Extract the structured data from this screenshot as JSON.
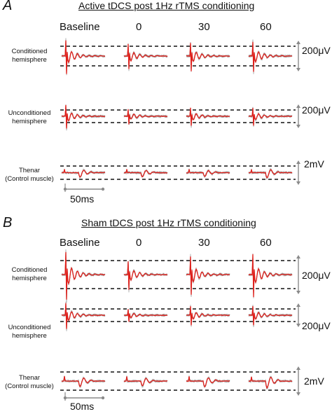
{
  "panels": [
    {
      "letter": "A",
      "title": "Active tDCS post 1Hz rTMS conditioning",
      "columns": [
        "Baseline",
        "0",
        "30",
        "60"
      ],
      "rows": [
        {
          "label_line1": "Conditioned",
          "label_line2": "hemisphere",
          "scale": "200μV"
        },
        {
          "label_line1": "Unconditioned",
          "label_line2": "hemisphere",
          "scale": "200μV"
        },
        {
          "label_line1": "Thenar",
          "label_line2": "(Control muscle)",
          "scale": "2mV"
        }
      ],
      "time_scale": "50ms"
    },
    {
      "letter": "B",
      "title": "Sham tDCS post 1Hz rTMS conditioning",
      "columns": [
        "Baseline",
        "0",
        "30",
        "60"
      ],
      "rows": [
        {
          "label_line1": "Conditioned",
          "label_line2": "hemisphere",
          "scale": "200μV"
        },
        {
          "label_line1": "Unconditioned",
          "label_line2": "hemisphere",
          "scale": "200μV"
        },
        {
          "label_line1": "Thenar",
          "label_line2": "(Control muscle)",
          "scale": "2mV"
        }
      ],
      "time_scale": "50ms"
    }
  ],
  "colors": {
    "trace_mean": "#e0201b",
    "trace_individual": "#9a9a9a",
    "dashed_line": "#111111",
    "scale_bar": "#8a8a8a"
  }
}
